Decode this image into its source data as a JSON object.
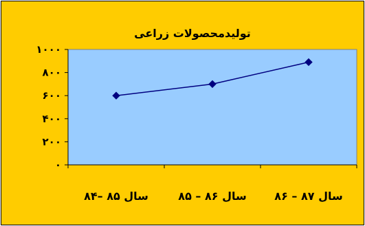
{
  "chart_data": {
    "type": "line",
    "title": "تولیدمحصولات زراعی",
    "categories": [
      "سال ۸۵ –۸۴",
      "سال ۸۶ – ۸۵",
      "سال ۸۷ – ۸۶"
    ],
    "series": [
      {
        "values": [
          600,
          700,
          890
        ]
      }
    ],
    "ylim": [
      0,
      1000
    ],
    "yticks": [
      0,
      200,
      400,
      600,
      800,
      1000
    ],
    "ytick_labels": [
      "۰",
      "۲۰۰",
      "۴۰۰",
      "۶۰۰",
      "۸۰۰",
      "۱۰۰۰"
    ],
    "grid": false,
    "legend": "none",
    "colors": {
      "background": "#ffcc00",
      "plot_area": "#99ccff",
      "series": "#000080"
    }
  }
}
